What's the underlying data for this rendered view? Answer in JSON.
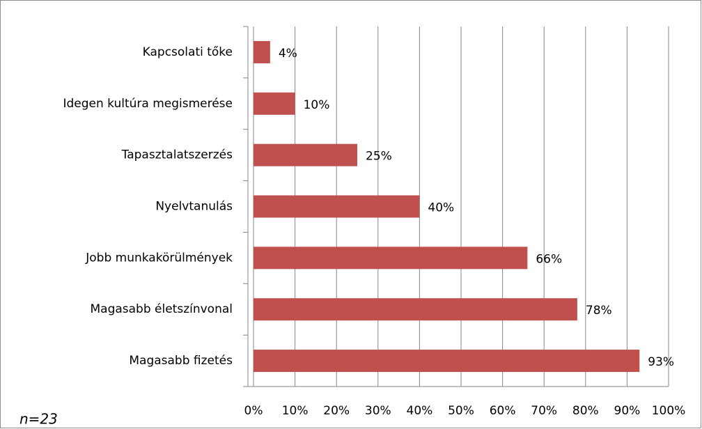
{
  "chart_data": {
    "type": "bar",
    "orientation": "horizontal",
    "categories": [
      "Kapcsolati tőke",
      "Idegen kultúra megismerése",
      "Tapasztalatszerzés",
      "Nyelvtanulás",
      "Jobb munkakörülmények",
      "Magasabb életszínvonal",
      "Magasabb fizetés"
    ],
    "values": [
      4,
      10,
      25,
      40,
      66,
      78,
      93
    ],
    "value_labels": [
      "4%",
      "10%",
      "25%",
      "40%",
      "66%",
      "78%",
      "93%"
    ],
    "color": "#c0504d",
    "xlim": [
      0,
      100
    ],
    "xticks": [
      {
        "value": 0,
        "label": "0%"
      },
      {
        "value": 10,
        "label": "10%"
      },
      {
        "value": 20,
        "label": "20%"
      },
      {
        "value": 30,
        "label": "30%"
      },
      {
        "value": 40,
        "label": "40%"
      },
      {
        "value": 50,
        "label": "50%"
      },
      {
        "value": 60,
        "label": "60%"
      },
      {
        "value": 70,
        "label": "70%"
      },
      {
        "value": 80,
        "label": "80%"
      },
      {
        "value": 90,
        "label": "90%"
      },
      {
        "value": 100,
        "label": "100%"
      }
    ],
    "grid": true,
    "annotation": "n=23"
  }
}
